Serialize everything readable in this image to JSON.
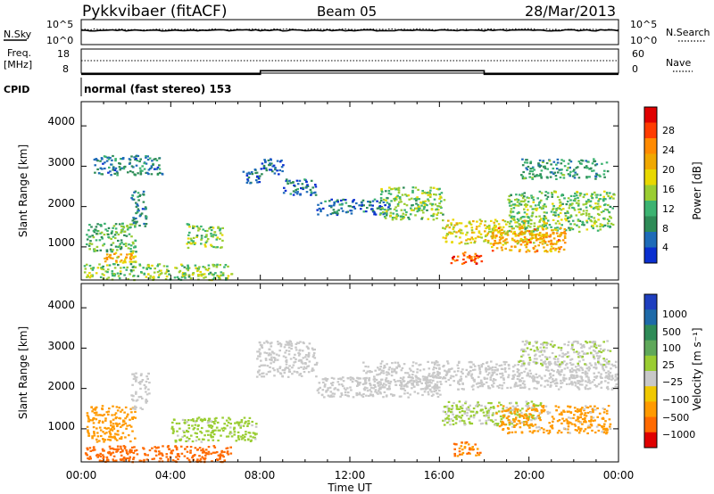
{
  "header": {
    "station": "Pykkvibaer (fitACF)",
    "beam": "Beam 05",
    "date": "28/Mar/2013"
  },
  "nsky_panel": {
    "left_label": "N.Sky",
    "left_ticks": [
      "10^5",
      "10^0"
    ],
    "right_label": "N.Search",
    "right_ticks": [
      "10^5",
      "10^0"
    ]
  },
  "freq_panel": {
    "left_label_1": "Freq.",
    "left_label_2": "[MHz]",
    "left_ticks": [
      "18",
      "8"
    ],
    "right_label": "Nave",
    "right_ticks": [
      "60",
      "0"
    ]
  },
  "cpid_panel": {
    "label": "CPID",
    "text": "normal (fast stereo) 153"
  },
  "power_panel": {
    "ylabel": "Slant Range [km]",
    "yticks": [
      "4000",
      "3000",
      "2000",
      "1000"
    ],
    "cbar_label": "Power [dB]",
    "cbar_ticks": [
      "28",
      "24",
      "20",
      "16",
      "12",
      "8",
      "4"
    ],
    "cbar_colors": [
      "#e00000",
      "#ff3c00",
      "#ff8a00",
      "#f0a800",
      "#e8d800",
      "#9acd32",
      "#3cb371",
      "#2e8b57",
      "#1e6bb8",
      "#0a2fd0"
    ]
  },
  "velocity_panel": {
    "ylabel": "Slant Range [km]",
    "yticks": [
      "4000",
      "3000",
      "2000",
      "1000"
    ],
    "cbar_label": "Velocity [m s⁻¹]",
    "cbar_ticks": [
      "1000",
      "500",
      "100",
      "25",
      "−25",
      "−100",
      "−500",
      "−1000"
    ],
    "cbar_colors": [
      "#1f3fbf",
      "#1e6aa8",
      "#2e8b57",
      "#5fa85a",
      "#9acd32",
      "#c8c8c8",
      "#f0c800",
      "#ff9a00",
      "#ff6a00",
      "#e00000"
    ]
  },
  "xaxis": {
    "label": "Time UT",
    "ticks": [
      "00:00",
      "04:00",
      "08:00",
      "12:00",
      "16:00",
      "20:00",
      "00:00"
    ]
  },
  "chart_data": {
    "type": "heatmap",
    "x_range_hours": [
      0,
      24
    ],
    "y_range_km": [
      180,
      4600
    ],
    "freq_steps": [
      {
        "t": 0,
        "mhz": 9
      },
      {
        "t": 8,
        "mhz": 10.5
      },
      {
        "t": 18,
        "mhz": 9
      }
    ],
    "power_regions": [
      {
        "t0": 0.1,
        "t1": 6.7,
        "r0": 200,
        "r1": 600,
        "db": 14
      },
      {
        "t0": 0.2,
        "t1": 2.4,
        "r0": 900,
        "r1": 1600,
        "db": 12
      },
      {
        "t0": 1.0,
        "t1": 2.4,
        "r0": 600,
        "r1": 900,
        "db": 20
      },
      {
        "t0": 2.2,
        "t1": 2.9,
        "r0": 1500,
        "r1": 2400,
        "db": 8
      },
      {
        "t0": 4.6,
        "t1": 6.3,
        "r0": 1000,
        "r1": 1600,
        "db": 14
      },
      {
        "t0": 7.2,
        "t1": 8.0,
        "r0": 2600,
        "r1": 3000,
        "db": 6
      },
      {
        "t0": 8.0,
        "t1": 9.0,
        "r0": 2800,
        "r1": 3200,
        "db": 6
      },
      {
        "t0": 9.0,
        "t1": 10.5,
        "r0": 2300,
        "r1": 2700,
        "db": 7
      },
      {
        "t0": 10.5,
        "t1": 13.8,
        "r0": 1800,
        "r1": 2200,
        "db": 7
      },
      {
        "t0": 13.3,
        "t1": 16.2,
        "r0": 1700,
        "r1": 2500,
        "db": 14
      },
      {
        "t0": 16.1,
        "t1": 20.8,
        "r0": 1100,
        "r1": 1700,
        "db": 18
      },
      {
        "t0": 16.4,
        "t1": 17.9,
        "r0": 600,
        "r1": 900,
        "db": 26
      },
      {
        "t0": 19.0,
        "t1": 23.8,
        "r0": 1400,
        "r1": 2400,
        "db": 14
      },
      {
        "t0": 18.3,
        "t1": 21.6,
        "r0": 900,
        "r1": 1500,
        "db": 22
      },
      {
        "t0": 19.6,
        "t1": 23.5,
        "r0": 2700,
        "r1": 3200,
        "db": 10
      },
      {
        "t0": 0.5,
        "t1": 3.6,
        "r0": 2800,
        "r1": 3300,
        "db": 8
      }
    ],
    "velocity_regions": [
      {
        "t0": 0.1,
        "t1": 6.7,
        "r0": 200,
        "r1": 600,
        "v": -150
      },
      {
        "t0": 0.2,
        "t1": 2.4,
        "r0": 700,
        "r1": 1600,
        "v": -80
      },
      {
        "t0": 2.2,
        "t1": 3.0,
        "r0": 1500,
        "r1": 2400,
        "v": 0
      },
      {
        "t0": 4.0,
        "t1": 7.8,
        "r0": 700,
        "r1": 1300,
        "v": 40
      },
      {
        "t0": 7.8,
        "t1": 10.5,
        "r0": 2300,
        "r1": 3200,
        "v": 0
      },
      {
        "t0": 10.5,
        "t1": 16.0,
        "r0": 1800,
        "r1": 2300,
        "v": 0
      },
      {
        "t0": 12.5,
        "t1": 23.9,
        "r0": 2000,
        "r1": 2700,
        "v": 0
      },
      {
        "t0": 16.1,
        "t1": 20.5,
        "r0": 1100,
        "r1": 1700,
        "v": 30
      },
      {
        "t0": 16.6,
        "t1": 17.8,
        "r0": 350,
        "r1": 700,
        "v": -100
      },
      {
        "t0": 18.5,
        "t1": 23.6,
        "r0": 900,
        "r1": 1600,
        "v": -40
      },
      {
        "t0": 19.5,
        "t1": 23.6,
        "r0": 2600,
        "r1": 3200,
        "v": 20
      }
    ]
  }
}
